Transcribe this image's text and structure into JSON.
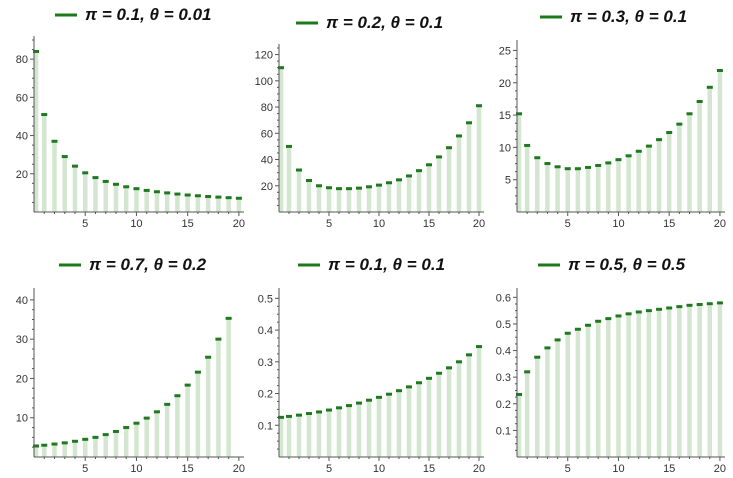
{
  "chart_data": [
    {
      "type": "bar",
      "style": "stem-with-cap",
      "legend": {
        "symbol": "line",
        "color": "#1a7a1a",
        "label": "π = 0.1, θ = 0.01"
      },
      "x": [
        0,
        1,
        2,
        3,
        4,
        5,
        6,
        7,
        8,
        9,
        10,
        11,
        12,
        13,
        14,
        15,
        16,
        17,
        18,
        19,
        20
      ],
      "values": [
        84,
        51,
        37,
        29,
        24,
        20.5,
        18,
        16,
        14.5,
        13.2,
        12.2,
        11.3,
        10.6,
        10,
        9.4,
        8.9,
        8.5,
        8.1,
        7.8,
        7.5,
        7.2
      ],
      "xlim": [
        0,
        20.5
      ],
      "ylim": [
        0,
        90
      ],
      "xticks": [
        5,
        10,
        15,
        20
      ],
      "yticks": [
        20,
        40,
        60,
        80
      ],
      "xlabel": "",
      "ylabel": ""
    },
    {
      "type": "bar",
      "style": "stem-with-cap",
      "legend": {
        "symbol": "line",
        "color": "#1a7a1a",
        "label": "π = 0.2, θ = 0.1"
      },
      "x": [
        0,
        1,
        2,
        3,
        4,
        5,
        6,
        7,
        8,
        9,
        10,
        11,
        12,
        13,
        14,
        15,
        16,
        17,
        18,
        19,
        20
      ],
      "values": [
        110,
        50,
        32,
        24,
        20,
        18.5,
        17.8,
        17.8,
        18.2,
        19.2,
        20.5,
        22.3,
        24.5,
        27.5,
        31.5,
        36,
        42,
        49,
        58,
        68,
        81
      ],
      "xlim": [
        0,
        20.5
      ],
      "ylim": [
        0,
        125
      ],
      "xticks": [
        5,
        10,
        15,
        20
      ],
      "yticks": [
        20,
        40,
        60,
        80,
        100,
        120
      ],
      "xlabel": "",
      "ylabel": ""
    },
    {
      "type": "bar",
      "style": "stem-with-cap",
      "legend": {
        "symbol": "line",
        "color": "#1a7a1a",
        "label": "π = 0.3, θ = 0.1"
      },
      "x": [
        0,
        1,
        2,
        3,
        4,
        5,
        6,
        7,
        8,
        9,
        10,
        11,
        12,
        13,
        14,
        15,
        16,
        17,
        18,
        19,
        20
      ],
      "values": [
        15.2,
        10.3,
        8.4,
        7.5,
        7,
        6.7,
        6.7,
        6.9,
        7.2,
        7.6,
        8.1,
        8.7,
        9.4,
        10.2,
        11.2,
        12.3,
        13.6,
        15.2,
        17.1,
        19.3,
        21.9
      ],
      "xlim": [
        0,
        20.5
      ],
      "ylim": [
        0,
        26
      ],
      "xticks": [
        5,
        10,
        15,
        20
      ],
      "yticks": [
        5,
        10,
        15,
        20,
        25
      ],
      "xlabel": "",
      "ylabel": ""
    },
    {
      "type": "bar",
      "style": "stem-with-cap",
      "legend": {
        "symbol": "line",
        "color": "#1a7a1a",
        "label": "π = 0.7, θ = 0.2"
      },
      "x": [
        0,
        1,
        2,
        3,
        4,
        5,
        6,
        7,
        8,
        9,
        10,
        11,
        12,
        13,
        14,
        15,
        16,
        17,
        18,
        19,
        20
      ],
      "values": [
        2.8,
        3,
        3.3,
        3.6,
        4,
        4.5,
        5,
        5.7,
        6.5,
        7.5,
        8.6,
        9.9,
        11.5,
        13.4,
        15.6,
        18.3,
        21.6,
        25.4,
        30,
        35.3,
        0
      ],
      "xlim": [
        0,
        20.5
      ],
      "ylim": [
        0,
        42
      ],
      "xticks": [
        5,
        10,
        15,
        20
      ],
      "yticks": [
        10,
        20,
        30,
        40
      ],
      "xlabel": "",
      "ylabel": ""
    },
    {
      "type": "bar",
      "style": "stem-with-cap",
      "legend": {
        "symbol": "line",
        "color": "#1a7a1a",
        "label": "π = 0.1, θ = 0.1"
      },
      "x": [
        0,
        1,
        2,
        3,
        4,
        5,
        6,
        7,
        8,
        9,
        10,
        11,
        12,
        13,
        14,
        15,
        16,
        17,
        18,
        19,
        20
      ],
      "values": [
        0.125,
        0.128,
        0.132,
        0.137,
        0.142,
        0.148,
        0.155,
        0.162,
        0.17,
        0.179,
        0.188,
        0.198,
        0.209,
        0.221,
        0.234,
        0.248,
        0.264,
        0.281,
        0.3,
        0.322,
        0.348
      ],
      "xlim": [
        0,
        20.5
      ],
      "ylim": [
        0,
        0.52
      ],
      "xticks": [
        5,
        10,
        15,
        20
      ],
      "yticks": [
        0.1,
        0.2,
        0.3,
        0.4,
        0.5
      ],
      "xlabel": "",
      "ylabel": ""
    },
    {
      "type": "bar",
      "style": "stem-with-cap",
      "legend": {
        "symbol": "line",
        "color": "#1a7a1a",
        "label": "π = 0.5, θ = 0.5"
      },
      "x": [
        0,
        1,
        2,
        3,
        4,
        5,
        6,
        7,
        8,
        9,
        10,
        11,
        12,
        13,
        14,
        15,
        16,
        17,
        18,
        19,
        20
      ],
      "values": [
        0.235,
        0.32,
        0.375,
        0.41,
        0.44,
        0.465,
        0.48,
        0.495,
        0.51,
        0.52,
        0.53,
        0.538,
        0.545,
        0.55,
        0.555,
        0.56,
        0.565,
        0.57,
        0.573,
        0.576,
        0.579
      ],
      "xlim": [
        0,
        20.5
      ],
      "ylim": [
        0,
        0.62
      ],
      "xticks": [
        5,
        10,
        15,
        20
      ],
      "yticks": [
        0.1,
        0.2,
        0.3,
        0.4,
        0.5,
        0.6
      ],
      "xlabel": "",
      "ylabel": ""
    }
  ]
}
